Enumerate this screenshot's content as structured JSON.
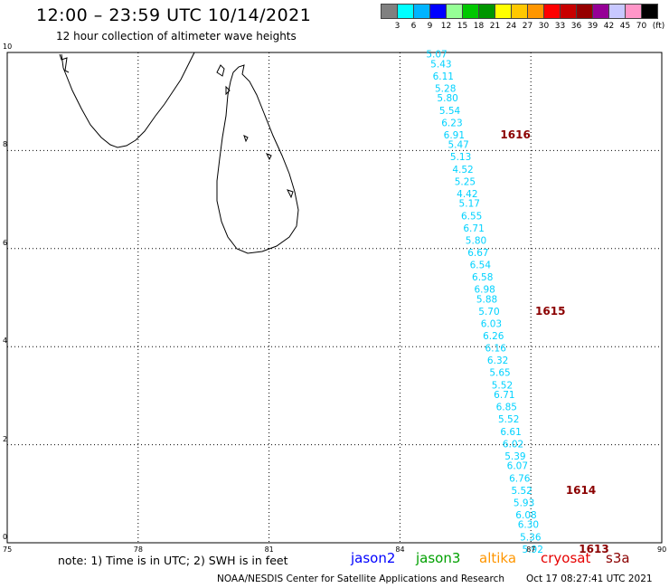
{
  "header": {
    "title": "12:00 – 23:59 UTC 10/14/2021",
    "subtitle": "12 hour collection of altimeter wave heights"
  },
  "legend": {
    "unit": "(ft)",
    "colors": [
      "#808080",
      "#00ffff",
      "#00b4ff",
      "#0000ff",
      "#96ff96",
      "#00c800",
      "#009600",
      "#ffff00",
      "#ffc800",
      "#ff9600",
      "#ff0000",
      "#c80000",
      "#960000",
      "#960096",
      "#c8c8ff",
      "#ff96c8",
      "#000000"
    ],
    "labels": [
      "3",
      "6",
      "9",
      "12",
      "15",
      "18",
      "21",
      "24",
      "27",
      "30",
      "33",
      "36",
      "39",
      "42",
      "45",
      "70"
    ]
  },
  "axes": {
    "x_ticks": [
      "75",
      "78",
      "81",
      "84",
      "87",
      "90"
    ],
    "y_ticks": [
      "0",
      "2",
      "4",
      "6",
      "8",
      "10"
    ],
    "xlim": [
      75,
      90
    ],
    "ylim": [
      0,
      10
    ]
  },
  "track": {
    "color": "#00d2ff",
    "points": [
      {
        "lon": 84.6,
        "lat": 9.9,
        "v": "5.07"
      },
      {
        "lon": 84.7,
        "lat": 9.7,
        "v": "5.43"
      },
      {
        "lon": 84.75,
        "lat": 9.45,
        "v": "6.11"
      },
      {
        "lon": 84.8,
        "lat": 9.2,
        "v": "5.28"
      },
      {
        "lon": 84.85,
        "lat": 9.0,
        "v": "5.80"
      },
      {
        "lon": 84.9,
        "lat": 8.75,
        "v": "5.54"
      },
      {
        "lon": 84.95,
        "lat": 8.5,
        "v": "6.23"
      },
      {
        "lon": 85.0,
        "lat": 8.25,
        "v": "6.91"
      },
      {
        "lon": 85.1,
        "lat": 8.05,
        "v": "5.47"
      },
      {
        "lon": 85.15,
        "lat": 7.8,
        "v": "5.13"
      },
      {
        "lon": 85.2,
        "lat": 7.55,
        "v": "4.52"
      },
      {
        "lon": 85.25,
        "lat": 7.3,
        "v": "5.25"
      },
      {
        "lon": 85.3,
        "lat": 7.05,
        "v": "4.42"
      },
      {
        "lon": 85.35,
        "lat": 6.85,
        "v": "5.17"
      },
      {
        "lon": 85.4,
        "lat": 6.6,
        "v": "6.55"
      },
      {
        "lon": 85.45,
        "lat": 6.35,
        "v": "6.71"
      },
      {
        "lon": 85.5,
        "lat": 6.1,
        "v": "5.80"
      },
      {
        "lon": 85.55,
        "lat": 5.85,
        "v": "6.67"
      },
      {
        "lon": 85.6,
        "lat": 5.6,
        "v": "6.54"
      },
      {
        "lon": 85.65,
        "lat": 5.35,
        "v": "6.58"
      },
      {
        "lon": 85.7,
        "lat": 5.1,
        "v": "6.98"
      },
      {
        "lon": 85.75,
        "lat": 4.9,
        "v": "5.88"
      },
      {
        "lon": 85.8,
        "lat": 4.65,
        "v": "5.70"
      },
      {
        "lon": 85.85,
        "lat": 4.4,
        "v": "6.03"
      },
      {
        "lon": 85.9,
        "lat": 4.15,
        "v": "6.26"
      },
      {
        "lon": 85.95,
        "lat": 3.9,
        "v": "6.16"
      },
      {
        "lon": 86.0,
        "lat": 3.65,
        "v": "6.32"
      },
      {
        "lon": 86.05,
        "lat": 3.4,
        "v": "5.65"
      },
      {
        "lon": 86.1,
        "lat": 3.15,
        "v": "5.52"
      },
      {
        "lon": 86.15,
        "lat": 2.95,
        "v": "6.71"
      },
      {
        "lon": 86.2,
        "lat": 2.7,
        "v": "6.85"
      },
      {
        "lon": 86.25,
        "lat": 2.45,
        "v": "5.52"
      },
      {
        "lon": 86.3,
        "lat": 2.2,
        "v": "6.61"
      },
      {
        "lon": 86.35,
        "lat": 1.95,
        "v": "6.02"
      },
      {
        "lon": 86.4,
        "lat": 1.7,
        "v": "5.39"
      },
      {
        "lon": 86.45,
        "lat": 1.5,
        "v": "6.07"
      },
      {
        "lon": 86.5,
        "lat": 1.25,
        "v": "6.76"
      },
      {
        "lon": 86.55,
        "lat": 1.0,
        "v": "5.52"
      },
      {
        "lon": 86.6,
        "lat": 0.75,
        "v": "5.93"
      },
      {
        "lon": 86.65,
        "lat": 0.5,
        "v": "6.08"
      },
      {
        "lon": 86.7,
        "lat": 0.3,
        "v": "6.30"
      },
      {
        "lon": 86.75,
        "lat": 0.05,
        "v": "5.36"
      },
      {
        "lon": 86.8,
        "lat": -0.2,
        "v": "5.92"
      }
    ]
  },
  "time_labels": {
    "color": "#8b0000",
    "items": [
      {
        "lon": 86.3,
        "lat": 8.25,
        "t": "1616"
      },
      {
        "lon": 87.1,
        "lat": 4.65,
        "t": "1615"
      },
      {
        "lon": 87.8,
        "lat": 1.0,
        "t": "1614"
      },
      {
        "lon": 88.1,
        "lat": -0.2,
        "t": "1613"
      }
    ]
  },
  "footer": {
    "note": "note: 1) Time is in UTC; 2) SWH is in feet",
    "satellites": [
      {
        "name": "jason2",
        "color": "#0000ff"
      },
      {
        "name": "jason3",
        "color": "#00a000"
      },
      {
        "name": "altika",
        "color": "#ff9600"
      },
      {
        "name": "cryosat",
        "color": "#e60000"
      },
      {
        "name": "s3a",
        "color": "#8b0000"
      }
    ],
    "credit": "NOAA/NESDIS Center for Satellite Applications and Research",
    "generated": "Oct 17 08:27:41 UTC 2021"
  }
}
